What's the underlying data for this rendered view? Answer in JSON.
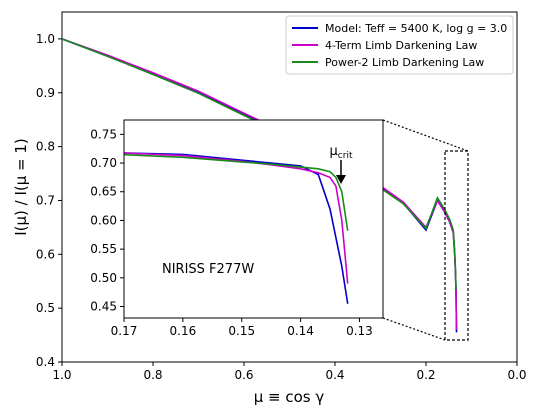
{
  "chart_data": [
    {
      "type": "line",
      "xlabel": "μ ≡ cos γ",
      "ylabel": "I(μ) / I(μ = 1)",
      "xlim": [
        1.0,
        0.0
      ],
      "ylim": [
        0.4,
        1.05
      ],
      "x_ticks": [
        "1.0",
        "0.8",
        "0.6",
        "0.4",
        "0.2",
        "0.0"
      ],
      "y_ticks": [
        "0.4",
        "0.5",
        "0.6",
        "0.7",
        "0.8",
        "0.9",
        "1.0"
      ],
      "legend_position": "top-right",
      "legend": [
        "Model: Teff = 5400 K, log g = 3.0",
        "4-Term Limb Darkening Law",
        "Power-2 Limb Darkening Law"
      ],
      "colors": {
        "model": "#0000cc",
        "four_term": "#cc00cc",
        "power2": "#1a8a1a"
      },
      "series": [
        {
          "name": "Model: Teff = 5400 K, log g = 3.0",
          "x": [
            1.0,
            0.9,
            0.8,
            0.7,
            0.6,
            0.5,
            0.4,
            0.3,
            0.25,
            0.2,
            0.18,
            0.16,
            0.15,
            0.145,
            0.14,
            0.137,
            0.135,
            0.133,
            0.132
          ],
          "y": [
            1.0,
            0.968,
            0.935,
            0.9,
            0.86,
            0.82,
            0.775,
            0.725,
            0.695,
            0.645,
            0.72,
            0.715,
            0.705,
            0.7,
            0.695,
            0.68,
            0.62,
            0.52,
            0.455
          ]
        },
        {
          "name": "4-Term Limb Darkening Law",
          "x": [
            1.0,
            0.9,
            0.8,
            0.7,
            0.6,
            0.5,
            0.4,
            0.3,
            0.25,
            0.2,
            0.18,
            0.16,
            0.15,
            0.145,
            0.14,
            0.137,
            0.135,
            0.134,
            0.133,
            0.132
          ],
          "y": [
            1.0,
            0.97,
            0.937,
            0.903,
            0.862,
            0.822,
            0.778,
            0.727,
            0.697,
            0.65,
            0.722,
            0.713,
            0.703,
            0.697,
            0.69,
            0.683,
            0.675,
            0.66,
            0.6,
            0.49
          ]
        },
        {
          "name": "Power-2 Limb Darkening Law",
          "x": [
            1.0,
            0.9,
            0.8,
            0.7,
            0.6,
            0.5,
            0.4,
            0.3,
            0.25,
            0.2,
            0.18,
            0.16,
            0.15,
            0.145,
            0.14,
            0.137,
            0.135,
            0.134,
            0.133,
            0.132
          ],
          "y": [
            1.0,
            0.968,
            0.934,
            0.899,
            0.858,
            0.818,
            0.773,
            0.723,
            0.694,
            0.648,
            0.719,
            0.71,
            0.702,
            0.698,
            0.693,
            0.69,
            0.685,
            0.675,
            0.65,
            0.582
          ]
        }
      ]
    },
    {
      "type": "line",
      "inset": true,
      "annotation": "NIRISS F277W",
      "marker_label": "μcrit",
      "marker_x": 0.132,
      "xlim": [
        0.17,
        0.126
      ],
      "ylim": [
        0.43,
        0.775
      ],
      "x_ticks": [
        "0.17",
        "0.16",
        "0.15",
        "0.14",
        "0.13"
      ],
      "y_ticks": [
        "0.45",
        "0.50",
        "0.55",
        "0.60",
        "0.65",
        "0.70",
        "0.75"
      ]
    }
  ]
}
